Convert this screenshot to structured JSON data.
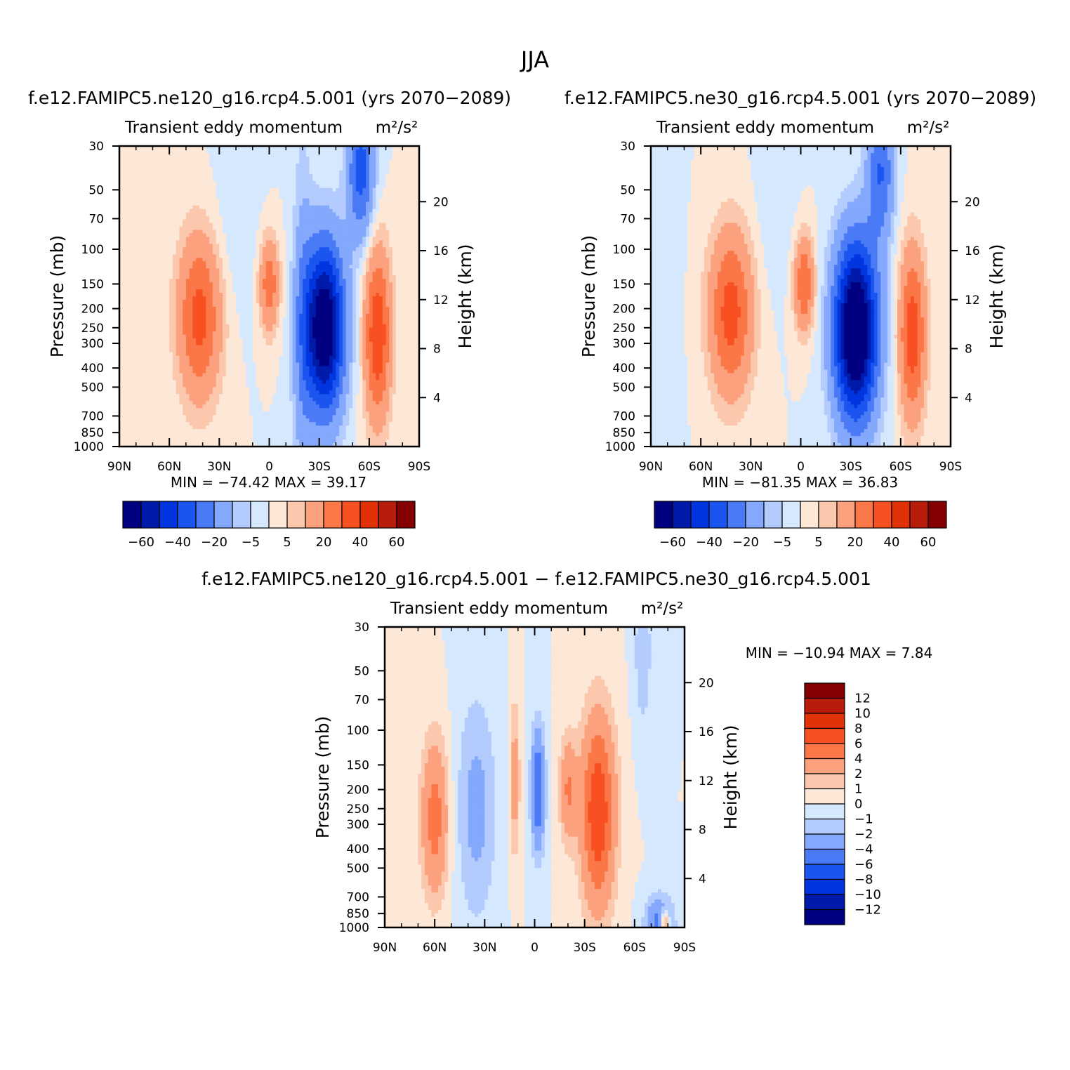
{
  "figure": {
    "title": "JJA"
  },
  "chart_data": [
    {
      "type": "heatmap",
      "title": "f.e12.FAMIPC5.ne120_g16.rcp4.5.001 (yrs 2070−2089)",
      "subtitle": "Transient eddy momentum",
      "units": "m²/s²",
      "ylabel": "Pressure (mb)",
      "y2label": "Height (km)",
      "x_ticks": [
        "90N",
        "60N",
        "30N",
        "0",
        "30S",
        "60S",
        "90S"
      ],
      "x_values": [
        90,
        60,
        30,
        0,
        -30,
        -60,
        -90
      ],
      "y_ticks": [
        "30",
        "50",
        "70",
        "100",
        "150",
        "200",
        "250",
        "300",
        "400",
        "500",
        "700",
        "850",
        "1000"
      ],
      "y_values": [
        30,
        50,
        70,
        100,
        150,
        200,
        250,
        300,
        400,
        500,
        700,
        850,
        1000
      ],
      "y2_ticks": [
        "20",
        "16",
        "12",
        "8",
        "4"
      ],
      "y2_values": [
        20,
        16,
        12,
        8,
        4
      ],
      "ylim": [
        1000,
        30
      ],
      "scale": "log-pressure",
      "stats": "MIN = −74.42   MAX =   39.17",
      "min": -74.42,
      "max": 39.17,
      "features": [
        {
          "lat": -33,
          "p": 250,
          "value": -74.4,
          "wlat": 12,
          "wz": 1.0
        },
        {
          "lat": -65,
          "p": 270,
          "value": 39.2,
          "wlat": 8,
          "wz": 1.0
        },
        {
          "lat": 42,
          "p": 220,
          "value": 34,
          "wlat": 13,
          "wz": 0.95
        },
        {
          "lat": 0,
          "p": 150,
          "value": 27,
          "wlat": 6,
          "wz": 0.55
        },
        {
          "lat": -55,
          "p": 40,
          "value": -35,
          "wlat": 8,
          "wz": 0.8
        },
        {
          "lat": -20,
          "p": 300,
          "value": -12,
          "wlat": 6,
          "wz": 2.5
        },
        {
          "lat": 20,
          "p": 80,
          "value": -4,
          "wlat": 15,
          "wz": 1.0
        }
      ],
      "colorbar": {
        "orientation": "horizontal",
        "labels": [
          "−60",
          "−40",
          "−20",
          "−5",
          "5",
          "20",
          "40",
          "60"
        ],
        "colors": [
          "#000080",
          "#001aaa",
          "#0035df",
          "#1a55f0",
          "#4a7af5",
          "#84a8fb",
          "#b3cbfd",
          "#d6e8fe",
          "#fde8d8",
          "#fcc8ad",
          "#fca17e",
          "#fb7747",
          "#f95022",
          "#e23106",
          "#b81d0b",
          "#850000"
        ]
      }
    },
    {
      "type": "heatmap",
      "title": "f.e12.FAMIPC5.ne30_g16.rcp4.5.001 (yrs 2070−2089)",
      "subtitle": "Transient eddy momentum",
      "units": "m²/s²",
      "ylabel": "Pressure (mb)",
      "y2label": "Height (km)",
      "x_ticks": [
        "90N",
        "60N",
        "30N",
        "0",
        "30S",
        "60S",
        "90S"
      ],
      "x_values": [
        90,
        60,
        30,
        0,
        -30,
        -60,
        -90
      ],
      "y_ticks": [
        "30",
        "50",
        "70",
        "100",
        "150",
        "200",
        "250",
        "300",
        "400",
        "500",
        "700",
        "850",
        "1000"
      ],
      "y_values": [
        30,
        50,
        70,
        100,
        150,
        200,
        250,
        300,
        400,
        500,
        700,
        850,
        1000
      ],
      "y2_ticks": [
        "20",
        "16",
        "12",
        "8",
        "4"
      ],
      "y2_values": [
        20,
        16,
        12,
        8,
        4
      ],
      "ylim": [
        1000,
        30
      ],
      "scale": "log-pressure",
      "stats": "MIN = −81.35   MAX =   36.83",
      "min": -81.35,
      "max": 36.83,
      "features": [
        {
          "lat": -33,
          "p": 260,
          "value": -81.3,
          "wlat": 13,
          "wz": 1.05
        },
        {
          "lat": -67,
          "p": 270,
          "value": 36.8,
          "wlat": 8,
          "wz": 1.0
        },
        {
          "lat": 42,
          "p": 210,
          "value": 35,
          "wlat": 13,
          "wz": 0.95
        },
        {
          "lat": -2,
          "p": 150,
          "value": 30,
          "wlat": 6,
          "wz": 0.55
        },
        {
          "lat": -48,
          "p": 40,
          "value": -30,
          "wlat": 8,
          "wz": 0.8
        },
        {
          "lat": 85,
          "p": 200,
          "value": -5,
          "wlat": 10,
          "wz": 2.0
        },
        {
          "lat": 15,
          "p": 60,
          "value": -4,
          "wlat": 12,
          "wz": 1.0
        }
      ],
      "colorbar": {
        "orientation": "horizontal",
        "labels": [
          "−60",
          "−40",
          "−20",
          "−5",
          "5",
          "20",
          "40",
          "60"
        ],
        "colors": [
          "#000080",
          "#001aaa",
          "#0035df",
          "#1a55f0",
          "#4a7af5",
          "#84a8fb",
          "#b3cbfd",
          "#d6e8fe",
          "#fde8d8",
          "#fcc8ad",
          "#fca17e",
          "#fb7747",
          "#f95022",
          "#e23106",
          "#b81d0b",
          "#850000"
        ]
      }
    },
    {
      "type": "heatmap",
      "title": "f.e12.FAMIPC5.ne120_g16.rcp4.5.001 − f.e12.FAMIPC5.ne30_g16.rcp4.5.001",
      "subtitle": "Transient eddy momentum",
      "units": "m²/s²",
      "ylabel": "Pressure (mb)",
      "y2label": "Height (km)",
      "x_ticks": [
        "90N",
        "60N",
        "30N",
        "0",
        "30S",
        "60S",
        "90S"
      ],
      "x_values": [
        90,
        60,
        30,
        0,
        -30,
        -60,
        -90
      ],
      "y_ticks": [
        "30",
        "50",
        "70",
        "100",
        "150",
        "200",
        "250",
        "300",
        "400",
        "500",
        "700",
        "850",
        "1000"
      ],
      "y_values": [
        30,
        50,
        70,
        100,
        150,
        200,
        250,
        300,
        400,
        500,
        700,
        850,
        1000
      ],
      "y2_ticks": [
        "20",
        "16",
        "12",
        "8",
        "4"
      ],
      "y2_values": [
        20,
        16,
        12,
        8,
        4
      ],
      "ylim": [
        1000,
        30
      ],
      "scale": "log-pressure",
      "stats": "MIN = −10.94   MAX =    7.84",
      "min": -10.94,
      "max": 7.84,
      "features": [
        {
          "lat": -38,
          "p": 260,
          "value": 7.8,
          "wlat": 10,
          "wz": 1.1
        },
        {
          "lat": -20,
          "p": 200,
          "value": 4,
          "wlat": 5,
          "wz": 0.6
        },
        {
          "lat": 60,
          "p": 280,
          "value": 5,
          "wlat": 8,
          "wz": 0.9
        },
        {
          "lat": 12,
          "p": 180,
          "value": 3,
          "wlat": 3,
          "wz": 0.9
        },
        {
          "lat": -2,
          "p": 200,
          "value": -6,
          "wlat": 4,
          "wz": 0.7
        },
        {
          "lat": 35,
          "p": 250,
          "value": -2.5,
          "wlat": 12,
          "wz": 1.3
        },
        {
          "lat": -75,
          "p": 950,
          "value": -5,
          "wlat": 8,
          "wz": 0.3
        },
        {
          "lat": -78,
          "p": 950,
          "value": 6,
          "wlat": 3,
          "wz": 0.15
        },
        {
          "lat": -65,
          "p": 40,
          "value": -2,
          "wlat": 5,
          "wz": 0.9
        }
      ],
      "colorbar": {
        "orientation": "vertical",
        "labels": [
          "12",
          "10",
          "8",
          "6",
          "4",
          "2",
          "1",
          "0",
          "−1",
          "−2",
          "−4",
          "−6",
          "−8",
          "−10",
          "−12"
        ],
        "colors": [
          "#850000",
          "#b81d0b",
          "#e23106",
          "#f95022",
          "#fb7747",
          "#fca17e",
          "#fcc8ad",
          "#fde8d8",
          "#d6e8fe",
          "#b3cbfd",
          "#84a8fb",
          "#4a7af5",
          "#1a55f0",
          "#0035df",
          "#001aaa",
          "#000080"
        ]
      }
    }
  ]
}
